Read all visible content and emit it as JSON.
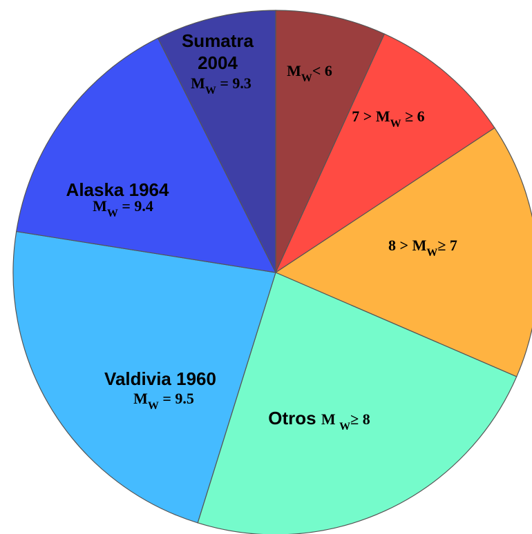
{
  "chart_data": {
    "type": "pie",
    "title": "",
    "start_angle_deg": 0,
    "direction": "clockwise",
    "slices": [
      {
        "name": "Mw<6",
        "value": 6.8,
        "color": "#9B3E3E",
        "label_parts": [
          {
            "t": "M"
          },
          {
            "t": "W",
            "sub": true
          },
          {
            "t": "< 6"
          }
        ]
      },
      {
        "name": "7 > Mw ≥ 6",
        "value": 8.9,
        "color": "#FF4B43",
        "label_parts": [
          {
            "t": "7 > M"
          },
          {
            "t": "W",
            "sub": true
          },
          {
            "t": " ≥ 6"
          }
        ]
      },
      {
        "name": "8 > Mw ≥ 7",
        "value": 15.8,
        "color": "#FFB341",
        "label_parts": [
          {
            "t": "8 > M"
          },
          {
            "t": "W",
            "sub": true
          },
          {
            "t": "≥   7"
          }
        ]
      },
      {
        "name": "Otros Mw ≥ 8",
        "value": 23.3,
        "color": "#75FBCB",
        "title": "Otros",
        "label_parts": [
          {
            "t": "M "
          },
          {
            "t": "W",
            "sub": true
          },
          {
            "t": "≥ 8"
          }
        ]
      },
      {
        "name": "Valdivia 1960",
        "value": 22.7,
        "color": "#45BBFF",
        "title": "Valdivia 1960",
        "label_parts": [
          {
            "t": "M"
          },
          {
            "t": "W",
            "sub": true
          },
          {
            "t": " = 9.5"
          }
        ]
      },
      {
        "name": "Alaska 1964",
        "value": 15.1,
        "color": "#3D52F6",
        "title": "Alaska 1964",
        "label_parts": [
          {
            "t": "M"
          },
          {
            "t": "W",
            "sub": true
          },
          {
            "t": " = 9.4"
          }
        ]
      },
      {
        "name": "Sumatra 2004",
        "value": 7.4,
        "color": "#3E3FA6",
        "title": "Sumatra\n2004",
        "label_parts": [
          {
            "t": "M"
          },
          {
            "t": "W",
            "sub": true
          },
          {
            "t": " = 9.3"
          }
        ]
      }
    ]
  }
}
